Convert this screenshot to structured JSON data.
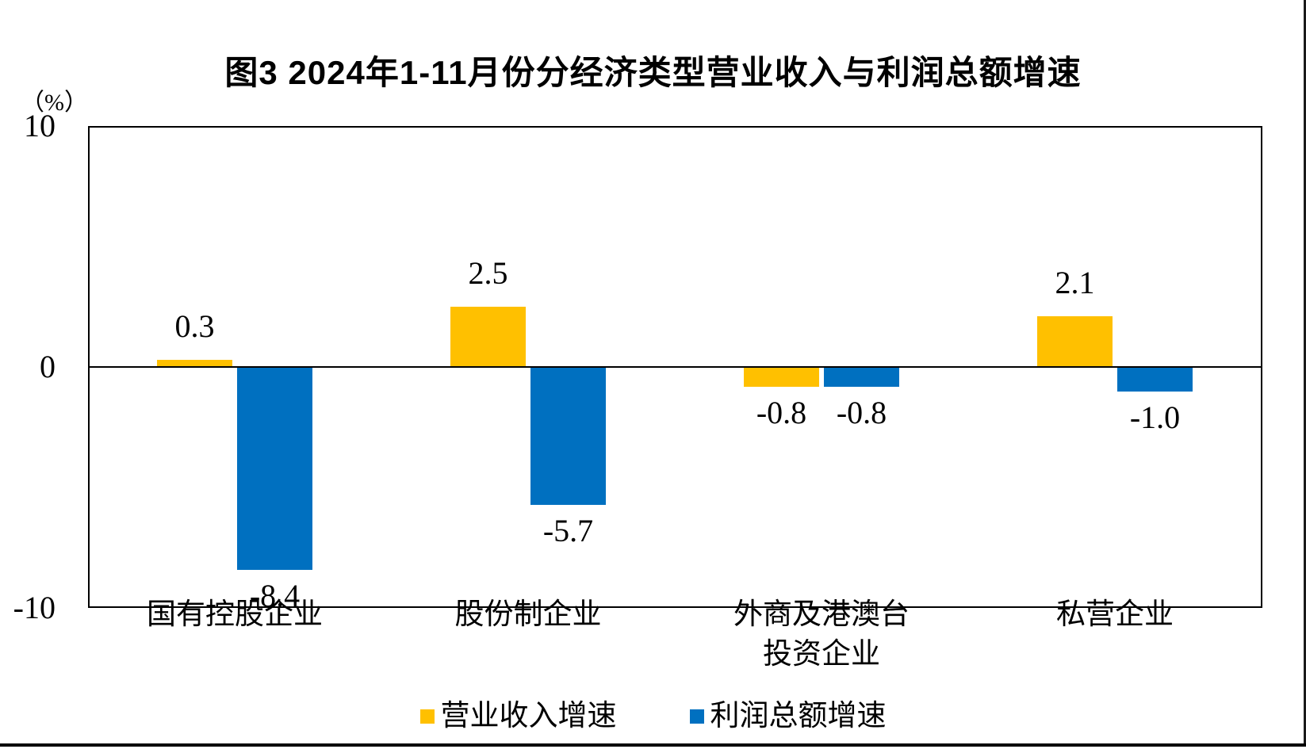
{
  "figure": {
    "title": "图3 2024年1-11月份分经济类型营业收入与利润总额增速",
    "unit_label": "（%）"
  },
  "chart_data": {
    "type": "bar",
    "title": "图3 2024年1-11月份分经济类型营业收入与利润总额增速",
    "ylabel": "（%）",
    "categories": [
      "国有控股企业",
      "股份制企业",
      "外商及港澳台\n投资企业",
      "私营企业"
    ],
    "series": [
      {
        "name": "营业收入增速",
        "color": "#FFC000",
        "values": [
          0.3,
          2.5,
          -0.8,
          2.1
        ]
      },
      {
        "name": "利润总额增速",
        "color": "#0070C0",
        "values": [
          -8.4,
          -5.7,
          -0.8,
          -1.0
        ]
      }
    ],
    "ylim": [
      -10,
      10
    ],
    "yticks": [
      10,
      0,
      -10
    ],
    "grid": false,
    "data_labels": true,
    "legend_position": "bottom",
    "axis_color": "#000000",
    "background_color": "#FFFFFF"
  }
}
